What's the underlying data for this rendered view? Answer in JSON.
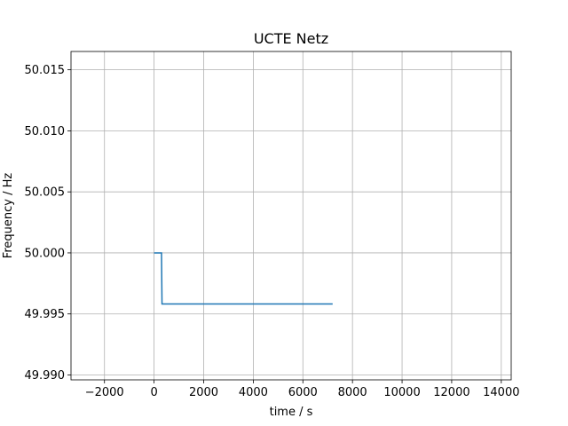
{
  "chart_data": {
    "type": "line",
    "title": "UCTE Netz",
    "xlabel": "time / s",
    "ylabel": "Frequency / Hz",
    "xlim": [
      -3350,
      14400
    ],
    "ylim": [
      49.9896,
      50.0165
    ],
    "xticks": [
      -2000,
      0,
      2000,
      4000,
      6000,
      8000,
      10000,
      12000,
      14000
    ],
    "xtick_labels": [
      "−2000",
      "0",
      "2000",
      "4000",
      "6000",
      "8000",
      "10000",
      "12000",
      "14000"
    ],
    "yticks": [
      49.99,
      49.995,
      50.0,
      50.005,
      50.01,
      50.015
    ],
    "ytick_labels": [
      "49.990",
      "49.995",
      "50.000",
      "50.005",
      "50.010",
      "50.015"
    ],
    "grid": true,
    "series": [
      {
        "color": "#1f77b4",
        "x": [
          0,
          300,
          300,
          320,
          7200
        ],
        "y": [
          50.0,
          50.0,
          49.9998,
          49.99582,
          49.99582
        ]
      }
    ]
  }
}
